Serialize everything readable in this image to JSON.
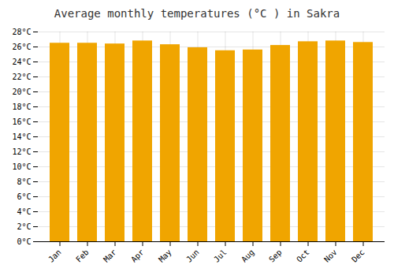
{
  "chart_data": {
    "type": "bar",
    "title": "Average monthly temperatures (°C ) in Sakra",
    "categories": [
      "Jan",
      "Feb",
      "Mar",
      "Apr",
      "May",
      "Jun",
      "Jul",
      "Aug",
      "Sep",
      "Oct",
      "Nov",
      "Dec"
    ],
    "values": [
      26.5,
      26.5,
      26.4,
      26.8,
      26.3,
      25.9,
      25.5,
      25.6,
      26.2,
      26.7,
      26.8,
      26.6
    ],
    "color": "#F0A500",
    "ylim": [
      0,
      28
    ],
    "yticks": [
      {
        "value": 0,
        "label": "0°C"
      },
      {
        "value": 2,
        "label": "2°C"
      },
      {
        "value": 4,
        "label": "4°C"
      },
      {
        "value": 6,
        "label": "6°C"
      },
      {
        "value": 8,
        "label": "8°C"
      },
      {
        "value": 10,
        "label": "10°C"
      },
      {
        "value": 12,
        "label": "12°C"
      },
      {
        "value": 14,
        "label": "14°C"
      },
      {
        "value": 16,
        "label": "16°C"
      },
      {
        "value": 18,
        "label": "18°C"
      },
      {
        "value": 20,
        "label": "20°C"
      },
      {
        "value": 22,
        "label": "22°C"
      },
      {
        "value": 24,
        "label": "24°C"
      },
      {
        "value": 26,
        "label": "26°C"
      },
      {
        "value": 28,
        "label": "28°C"
      }
    ],
    "grid": true
  }
}
